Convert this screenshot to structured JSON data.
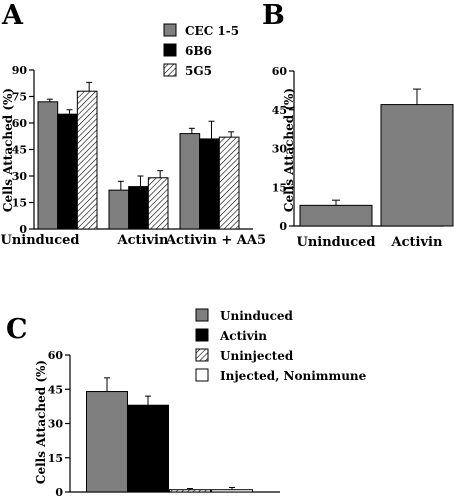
{
  "chart_data": [
    {
      "panel": "A",
      "type": "bar",
      "ylabel": "Cells Attached (%)",
      "ylim": [
        0,
        90
      ],
      "yticks": [
        0,
        15,
        30,
        45,
        60,
        75,
        90
      ],
      "categories": [
        "Uninduced",
        "Activin",
        "Activin + AA5"
      ],
      "series": [
        {
          "name": "CEC 1-5",
          "color": "#7f7f7f",
          "pattern": "solid",
          "values": [
            72,
            22,
            54
          ],
          "errors": [
            1.5,
            5,
            3
          ]
        },
        {
          "name": "6B6",
          "color": "#000000",
          "pattern": "solid",
          "values": [
            65,
            24,
            51
          ],
          "errors": [
            2.5,
            6,
            10
          ]
        },
        {
          "name": "5G5",
          "color": "#ffffff",
          "pattern": "hatched",
          "values": [
            78,
            29,
            52
          ],
          "errors": [
            5,
            4,
            3
          ]
        }
      ]
    },
    {
      "panel": "B",
      "type": "bar",
      "ylabel": "Cells Attached (%)",
      "ylim": [
        0,
        60
      ],
      "yticks": [
        0,
        15,
        30,
        45,
        60
      ],
      "categories": [
        "Uninduced",
        "Activin"
      ],
      "series": [
        {
          "color": "#7f7f7f",
          "pattern": "solid",
          "values": [
            8,
            47
          ],
          "errors": [
            2,
            6
          ]
        }
      ]
    },
    {
      "panel": "C",
      "type": "bar",
      "ylabel": "Cells Attached (%)",
      "ylim": [
        0,
        60
      ],
      "yticks": [
        0,
        15,
        30,
        45,
        60
      ],
      "categories": [
        "Uninduced",
        "Activin",
        "Uninjected",
        "Injected, Nonimmune"
      ],
      "values": [
        44,
        38,
        1,
        1
      ],
      "errors": [
        6,
        4,
        0.5,
        1
      ],
      "colors": [
        "#7f7f7f",
        "#000000",
        "#ffffff",
        "#ffffff"
      ],
      "patterns": [
        "solid",
        "solid",
        "hatched",
        "solid"
      ]
    }
  ]
}
